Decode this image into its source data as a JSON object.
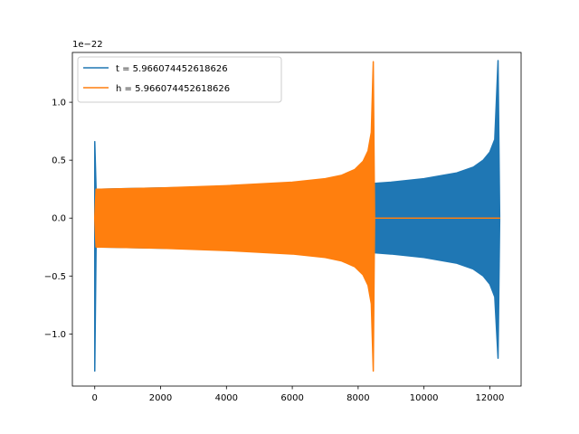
{
  "chart_data": {
    "type": "line",
    "title": "",
    "xlabel": "",
    "ylabel": "",
    "y_offset_text": "1e−22",
    "xlim": [
      -680,
      12950
    ],
    "ylim": [
      -1.45,
      1.43
    ],
    "x_ticks": [
      0,
      2000,
      4000,
      6000,
      8000,
      10000,
      12000
    ],
    "x_tick_labels": [
      "0",
      "2000",
      "4000",
      "6000",
      "8000",
      "10000",
      "12000"
    ],
    "y_ticks": [
      -1.0,
      -0.5,
      0.0,
      0.5,
      1.0
    ],
    "y_tick_labels": [
      "−1.0",
      "−0.5",
      "0.0",
      "0.5",
      "1.0"
    ],
    "grid": false,
    "legend_position": "upper-left",
    "series": [
      {
        "name": "t = 5.966074452618626",
        "color": "#1f77b4",
        "x": [
          0,
          40,
          200,
          2000,
          4000,
          6000,
          8000,
          8500,
          8520,
          9000,
          10000,
          11000,
          11500,
          11800,
          12000,
          12150,
          12250,
          12300
        ],
        "upper": [
          0.66,
          0.25,
          0.25,
          0.26,
          0.27,
          0.29,
          0.3,
          0.3,
          0.3,
          0.31,
          0.34,
          0.39,
          0.44,
          0.5,
          0.57,
          0.68,
          1.36,
          0.0
        ],
        "lower": [
          -1.32,
          -0.25,
          -0.25,
          -0.26,
          -0.27,
          -0.29,
          -0.3,
          -0.3,
          -0.3,
          -0.31,
          -0.34,
          -0.39,
          -0.44,
          -0.5,
          -0.57,
          -0.68,
          -1.21,
          0.0
        ]
      },
      {
        "name": "h = 5.966074452618626",
        "color": "#ff7f0e",
        "x": [
          0,
          40,
          200,
          2000,
          4000,
          6000,
          7000,
          7500,
          7900,
          8150,
          8300,
          8400,
          8460,
          8500,
          8520,
          9000,
          10000,
          11000,
          12000,
          12300
        ],
        "upper": [
          0.0,
          0.25,
          0.25,
          0.26,
          0.28,
          0.31,
          0.34,
          0.37,
          0.42,
          0.49,
          0.58,
          0.74,
          1.35,
          0.0,
          0.0,
          0.0,
          0.0,
          0.0,
          0.0,
          0.0
        ],
        "lower": [
          0.0,
          -0.25,
          -0.25,
          -0.26,
          -0.28,
          -0.31,
          -0.34,
          -0.37,
          -0.42,
          -0.49,
          -0.58,
          -0.74,
          -1.32,
          0.0,
          0.0,
          0.0,
          0.0,
          0.0,
          0.0,
          0.0
        ]
      }
    ]
  }
}
